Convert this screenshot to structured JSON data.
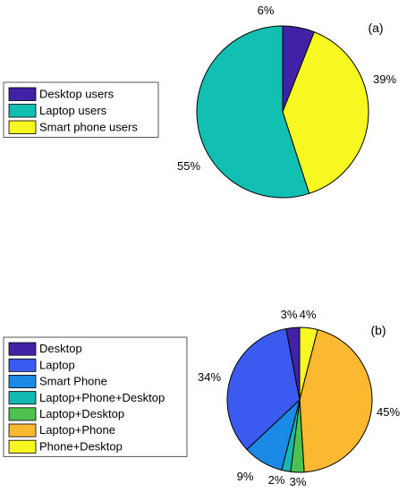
{
  "chart_data": [
    {
      "type": "pie",
      "panel_label": "(a)",
      "legend_placement": "left",
      "slices": [
        {
          "label": "Desktop users",
          "value": 6,
          "value_label": "6%",
          "color": "#4122a7"
        },
        {
          "label": "Smart phone users",
          "value": 39,
          "value_label": "39%",
          "color": "#f7f722"
        },
        {
          "label": "Laptop users",
          "value": 55,
          "value_label": "55%",
          "color": "#12bfb3"
        }
      ],
      "legend": [
        "Desktop users",
        "Laptop users",
        "Smart phone users"
      ]
    },
    {
      "type": "pie",
      "panel_label": "(b)",
      "legend_placement": "left",
      "slices": [
        {
          "label": "Phone+Desktop",
          "value": 4,
          "value_label": "4%",
          "color": "#f7f722"
        },
        {
          "label": "Laptop+Phone",
          "value": 45,
          "value_label": "45%",
          "color": "#fbb932"
        },
        {
          "label": "Laptop+Desktop",
          "value": 3,
          "value_label": "3%",
          "color": "#4ec24e"
        },
        {
          "label": "Laptop+Phone+Desktop",
          "value": 2,
          "value_label": "2%",
          "color": "#15b8b0"
        },
        {
          "label": "Smart Phone",
          "value": 9,
          "value_label": "9%",
          "color": "#1a8ae6"
        },
        {
          "label": "Laptop",
          "value": 34,
          "value_label": "34%",
          "color": "#3a5af0"
        },
        {
          "label": "Desktop",
          "value": 3,
          "value_label": "3%",
          "color": "#4122a7"
        }
      ],
      "legend": [
        "Desktop",
        "Laptop",
        "Smart Phone",
        "Laptop+Phone+Desktop",
        "Laptop+Desktop",
        "Laptop+Phone",
        "Phone+Desktop"
      ]
    }
  ]
}
